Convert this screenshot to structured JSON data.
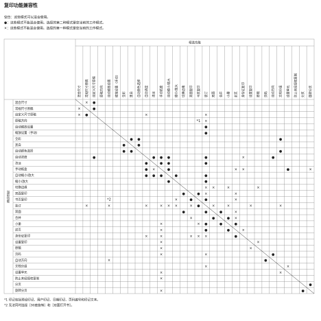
{
  "title": "复印功能兼容性",
  "legend": [
    "空白：这些模式可以混合使用。",
    "●：这些模式不能混合使用。选择的第二种模式是您当前的工作模式。",
    "×：这些模式不能混合使用。选择的第一种模式是您当前的工作模式。"
  ],
  "table": {
    "column_header": "候选功能",
    "row_header": "当前功能",
    "columns": [
      "混合尺寸",
      "常规尺寸原稿",
      "自定义尺寸原稿",
      "原稿方向",
      "自动缩放设置",
      "缩放设置（手动）",
      "全彩",
      "黑白",
      "自动颜色选择",
      "自动浓度",
      "浓淡",
      "手动纸盒",
      "自动缩小/放大",
      "缩小/放大",
      "切换边缘",
      "双面复印",
      "书页复印",
      "装订",
      "双面",
      "合并",
      "小册",
      "封页",
      "身份证复印",
      "设置复印",
      "原稿",
      "页码",
      "自动方向",
      "文档分组",
      "设置单元",
      "防止未经授权复制",
      "分页",
      "旋转分页"
    ],
    "rows": [
      {
        "label": "混合尺寸",
        "marks": {
          "1": "×",
          "2": "●"
        }
      },
      {
        "label": "常规尺寸原稿",
        "marks": {
          "0": "×",
          "2": "●"
        }
      },
      {
        "label": "自定义尺寸原稿",
        "marks": {
          "0": "×",
          "1": "●",
          "9": "×",
          "17": "×"
        }
      },
      {
        "label": "原稿方向",
        "marks": {
          "16": "*1",
          "17": "×"
        }
      },
      {
        "label": "自动缩放设置",
        "marks": {
          "17": "●"
        }
      },
      {
        "label": "缩放设置（手动）",
        "marks": {
          "17": "●"
        }
      },
      {
        "label": "全彩",
        "marks": {
          "7": "●",
          "8": "●",
          "27": "●"
        }
      },
      {
        "label": "黑白",
        "marks": {
          "6": "●",
          "8": "●"
        }
      },
      {
        "label": "自动颜色选择",
        "marks": {
          "6": "●",
          "7": "●",
          "27": "●"
        }
      },
      {
        "label": "自动浓度",
        "marks": {
          "2": "●",
          "10": "●",
          "11": "●",
          "12": "●",
          "17": "●",
          "22": "×",
          "26": "●"
        }
      },
      {
        "label": "浓淡",
        "marks": {
          "9": "●",
          "11": "●",
          "12": "●",
          "17": "●"
        }
      },
      {
        "label": "手动纸盒",
        "marks": {
          "9": "●",
          "10": "×",
          "12": "●",
          "21": "×",
          "22": "×",
          "28": "●",
          "31": "×"
        }
      },
      {
        "label": "自动缩小/放大",
        "marks": {
          "9": "●",
          "10": "●",
          "11": "●",
          "13": "●",
          "17": "●"
        }
      },
      {
        "label": "缩小/放大",
        "marks": {
          "12": "●",
          "17": "●"
        }
      },
      {
        "label": "切换边缘",
        "marks": {
          "17": "×",
          "18": "×",
          "20": "×",
          "24": "×"
        }
      },
      {
        "label": "双面复印",
        "marks": {
          "14": "●",
          "16": "●",
          "17": "×",
          "21": "×"
        }
      },
      {
        "label": "书页复印",
        "marks": {
          "4": "*2",
          "13": "×",
          "15": "●",
          "17": "●",
          "21": "×"
        }
      },
      {
        "label": "装订",
        "marks": {
          "1": "×",
          "4": "×",
          "9": "×",
          "11": "×",
          "12": "×",
          "13": "×",
          "15": "×",
          "16": "●",
          "18": "×",
          "20": "×",
          "23": "×",
          "27": "×"
        }
      },
      {
        "label": "双面",
        "marks": {
          "14": "●",
          "17": "●",
          "19": "●",
          "21": "×"
        }
      },
      {
        "label": "合并",
        "marks": {
          "15": "×",
          "18": "●",
          "20": "●",
          "21": "×"
        }
      },
      {
        "label": "小册",
        "marks": {
          "11": "×",
          "16": "×",
          "17": "●",
          "19": "●",
          "21": "●"
        }
      },
      {
        "label": "封页",
        "marks": {
          "11": "×",
          "17": "●",
          "20": "●",
          "22": "×"
        }
      },
      {
        "label": "身份证复印",
        "marks": {
          "9": "×",
          "11": "×",
          "15": "×",
          "16": "×",
          "17": "×",
          "21": "●"
        }
      },
      {
        "label": "设置复印",
        "marks": {
          "11": "×",
          "24": "×"
        }
      },
      {
        "label": "原稿",
        "marks": {
          "11": "×",
          "23": "×"
        }
      },
      {
        "label": "页码",
        "marks": {
          "11": "×",
          "17": "×",
          "26": "●"
        }
      },
      {
        "label": "自动方向",
        "marks": {
          "4": "×",
          "25": "●"
        }
      },
      {
        "label": "文档分组",
        "marks": {
          "17": "×",
          "28": "×"
        }
      },
      {
        "label": "设置单元",
        "marks": {
          "11": "×",
          "27": "×"
        }
      },
      {
        "label": "防止未经授权复制",
        "marks": {
          "11": "×"
        }
      },
      {
        "label": "分页",
        "marks": {
          "31": "●"
        }
      },
      {
        "label": "旋转分页",
        "marks": {
          "11": "×",
          "30": "●"
        }
      }
    ]
  },
  "footnotes": [
    "*1 印记包括预设印记、用户印记、日期印记、页码编号和印记文本。",
    "*2 无法同时选择［90度旋转］和［双面打开书］。"
  ]
}
